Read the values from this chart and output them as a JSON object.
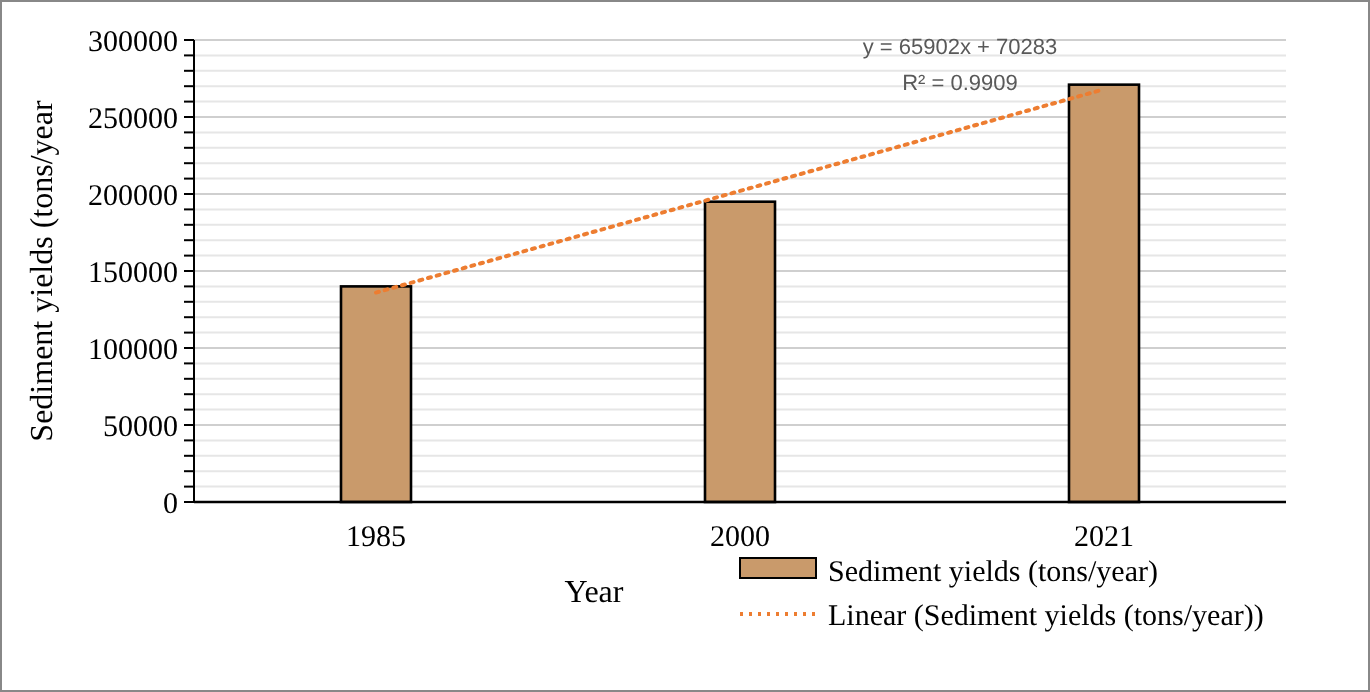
{
  "chart_data": {
    "type": "bar",
    "xlabel": "Year",
    "ylabel": "Sediment yields  (tons/year",
    "categories": [
      "1985",
      "2000",
      "2021"
    ],
    "series": [
      {
        "name": "Sediment yields (tons/year)",
        "color": "#c99a6b",
        "values": [
          140000,
          195000,
          271000
        ]
      },
      {
        "name": "Linear (Sediment yields (tons/year))",
        "type": "line",
        "color": "#ed7d31",
        "line_style": "dotted",
        "values": [
          136000,
          202000,
          268000
        ]
      }
    ],
    "ylim": [
      0,
      300000
    ],
    "yticks": [
      0,
      {
        "value": 10000,
        "label": null
      },
      {
        "value": 20000,
        "label": null
      },
      {
        "value": 30000,
        "label": null
      },
      {
        "value": 40000,
        "label": null
      },
      50000,
      {
        "value": 60000,
        "label": null
      },
      {
        "value": 70000,
        "label": null
      },
      {
        "value": 80000,
        "label": null
      },
      {
        "value": 90000,
        "label": null
      },
      100000,
      {
        "value": 110000,
        "label": null
      },
      {
        "value": 120000,
        "label": null
      },
      {
        "value": 130000,
        "label": null
      },
      {
        "value": 140000,
        "label": null
      },
      150000,
      {
        "value": 160000,
        "label": null
      },
      {
        "value": 170000,
        "label": null
      },
      {
        "value": 180000,
        "label": null
      },
      {
        "value": 190000,
        "label": null
      },
      200000,
      {
        "value": 210000,
        "label": null
      },
      {
        "value": 220000,
        "label": null
      },
      {
        "value": 230000,
        "label": null
      },
      {
        "value": 240000,
        "label": null
      },
      250000,
      {
        "value": 260000,
        "label": null
      },
      {
        "value": 270000,
        "label": null
      },
      {
        "value": 280000,
        "label": null
      },
      {
        "value": 290000,
        "label": null
      },
      300000
    ],
    "grid": "y",
    "legend": "bottom right",
    "annotations": [
      "y = 65902x + 70283",
      "R² = 0.9909"
    ]
  }
}
